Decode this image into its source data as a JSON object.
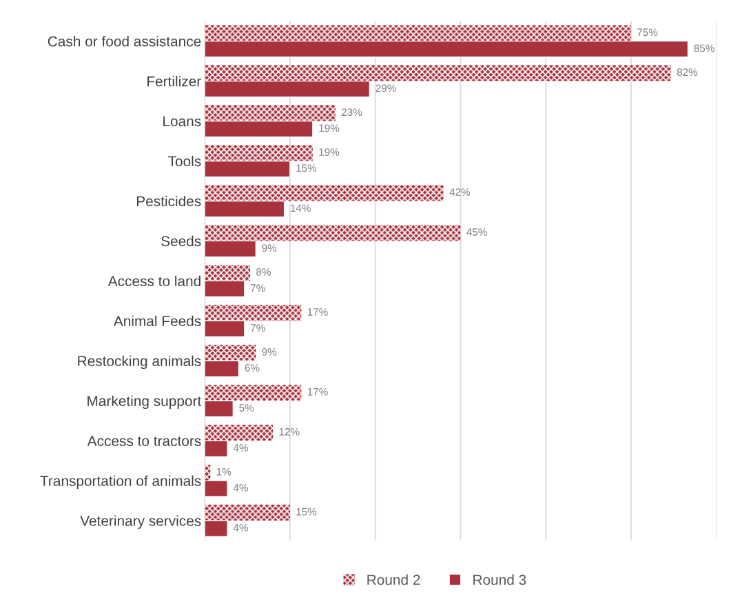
{
  "chart_data": {
    "type": "bar",
    "orientation": "horizontal",
    "categories": [
      "Cash or food assistance",
      "Fertilizer",
      "Loans",
      "Tools",
      "Pesticides",
      "Seeds",
      "Access to land",
      "Animal Feeds",
      "Restocking animals",
      "Marketing support",
      "Access to tractors",
      "Transportation of animals",
      "Veterinary services"
    ],
    "series": [
      {
        "name": "Round 2",
        "color": "#a8323e",
        "values": [
          75,
          82,
          23,
          19,
          42,
          45,
          8,
          17,
          9,
          17,
          12,
          1,
          15
        ],
        "value_labels": [
          "75%",
          "82%",
          "23%",
          "19%",
          "42%",
          "45%",
          "8%",
          "17%",
          "9%",
          "17%",
          "12%",
          "1%",
          "15%"
        ]
      },
      {
        "name": "Round 3",
        "color": "#a8323e",
        "values": [
          85,
          29,
          19,
          15,
          14,
          9,
          7,
          7,
          6,
          5,
          4,
          4,
          4
        ],
        "value_labels": [
          "85%",
          "29%",
          "19%",
          "15%",
          "14%",
          "9%",
          "7%",
          "7%",
          "6%",
          "5%",
          "4%",
          "4%",
          "4%"
        ]
      }
    ],
    "xlim": [
      0,
      90
    ],
    "xticks": [
      {
        "value": 0,
        "label": null
      },
      {
        "value": 15,
        "label": null
      },
      {
        "value": 30,
        "label": null
      },
      {
        "value": 45,
        "label": null
      },
      {
        "value": 60,
        "label": null
      },
      {
        "value": 75,
        "label": null
      },
      {
        "value": 90,
        "label": null
      }
    ],
    "grid": "x",
    "legend": "bottom",
    "tick_labels": "y"
  }
}
